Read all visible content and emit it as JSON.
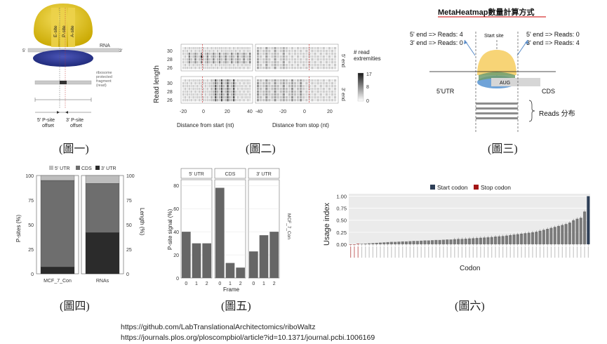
{
  "captions": [
    "(圖一)",
    "(圖二)",
    "(圖三)",
    "(圖四)",
    "(圖五)",
    "(圖六)"
  ],
  "fig1": {
    "sites": [
      "E-site",
      "P-site",
      "A-site"
    ],
    "rna_label": "RNA",
    "five_prime": "5'",
    "three_prime": "3'",
    "fragment_label": "ribosome\nprotected\nfragment\n(read)",
    "offset5": "5' P-site\noffset",
    "offset3": "3' P-site\noffset"
  },
  "fig2": {
    "ylabel": "Read length",
    "yticks": [
      "30",
      "28",
      "26"
    ],
    "xlabel_left": "Distance from start (nt)",
    "xlabel_right": "Distance from stop (nt)",
    "xticks_left": [
      "-20",
      "0",
      "20",
      "40"
    ],
    "xticks_right": [
      "-40",
      "-20",
      "0",
      "20"
    ],
    "strip_top": "5' end",
    "strip_bottom": "3' end",
    "legend_title": "# read\nextremities",
    "legend_ticks": [
      "17",
      "8",
      "0"
    ]
  },
  "fig3": {
    "title": "MetaHeatmap數量計算方式",
    "left_top": "5' end => Reads: 4",
    "left_bottom": "3' end => Reads: 0",
    "start_site": "Start site",
    "right_top": "5' end => Reads: 0",
    "right_bottom": "3' end => Reads: 4",
    "aug": "AUG",
    "utr": "5'UTR",
    "cds": "CDS",
    "reads": "Reads 分布"
  },
  "fig4": {
    "legend": [
      "5' UTR",
      "CDS",
      "3' UTR"
    ],
    "colors": {
      "utr5": "#bdbdbd",
      "cds": "#6e6e6e",
      "utr3": "#2b2b2b"
    },
    "ylabel_left": "P-sites (%)",
    "ylabel_right": "Length (%)",
    "yticks": [
      "100",
      "75",
      "50",
      "25",
      "0"
    ],
    "categories": [
      "MCF_7_Con",
      "RNAs"
    ]
  },
  "fig5": {
    "panels": [
      "5' UTR",
      "CDS",
      "3' UTR"
    ],
    "ylabel": "P-site signal (%)",
    "yticks": [
      "80",
      "60",
      "40",
      "20",
      "0"
    ],
    "xticks": [
      "0",
      "1",
      "2"
    ],
    "xlabel": "Frame",
    "strip_right": "MCF_7_Con"
  },
  "fig6": {
    "legend": [
      "Start codon",
      "Stop codon"
    ],
    "ylabel": "Usage index",
    "xlabel": "Codon",
    "yticks": [
      "1.00",
      "0.75",
      "0.50",
      "0.25",
      "0.00"
    ],
    "start_color": "#2e3f57",
    "stop_color": "#a31515"
  },
  "chart_data": [
    {
      "type": "bar",
      "stacked": true,
      "title": "(圖四)",
      "categories": [
        "MCF_7_Con",
        "RNAs"
      ],
      "series": [
        {
          "name": "3' UTR",
          "values": [
            7,
            42
          ]
        },
        {
          "name": "CDS",
          "values": [
            88,
            50
          ]
        },
        {
          "name": "5' UTR",
          "values": [
            5,
            8
          ]
        }
      ],
      "ylabel": "P-sites (%)",
      "ylabel_right": "Length (%)",
      "ylim": [
        0,
        100
      ]
    },
    {
      "type": "bar",
      "title": "(圖五)",
      "categories": [
        "0",
        "1",
        "2"
      ],
      "series": [
        {
          "name": "5' UTR",
          "values": [
            40,
            30,
            30
          ]
        },
        {
          "name": "CDS",
          "values": [
            78,
            13,
            9
          ]
        },
        {
          "name": "3' UTR",
          "values": [
            23,
            37,
            40
          ]
        }
      ],
      "xlabel": "Frame",
      "ylabel": "P-site signal (%)",
      "ylim": [
        0,
        85
      ],
      "grid": true
    },
    {
      "type": "bar",
      "title": "(圖六)",
      "series": [
        {
          "name": "Stop codon",
          "values": [
            0.0,
            0.0,
            0.01
          ]
        },
        {
          "name": "",
          "values": [
            0.01,
            0.015,
            0.02,
            0.025,
            0.03,
            0.035,
            0.04,
            0.045,
            0.05,
            0.05,
            0.055,
            0.06,
            0.06,
            0.065,
            0.07,
            0.07,
            0.075,
            0.08,
            0.08,
            0.085,
            0.09,
            0.09,
            0.095,
            0.1,
            0.1,
            0.105,
            0.11,
            0.11,
            0.115,
            0.12,
            0.125,
            0.13,
            0.135,
            0.14,
            0.145,
            0.15,
            0.16,
            0.165,
            0.17,
            0.18,
            0.19,
            0.2,
            0.21,
            0.22,
            0.23,
            0.24,
            0.25,
            0.26,
            0.28,
            0.3,
            0.32,
            0.34,
            0.36,
            0.38,
            0.4,
            0.42,
            0.45,
            0.5,
            0.53,
            0.55,
            0.68
          ]
        },
        {
          "name": "Start codon",
          "values": [
            1.0
          ]
        }
      ],
      "xlabel": "Codon",
      "ylabel": "Usage index",
      "ylim": [
        0,
        1.05
      ],
      "legend": "top",
      "grid": true
    }
  ],
  "urls": [
    "https://github.com/LabTranslationalArchitectomics/riboWaltz",
    "https://journals.plos.org/ploscompbiol/article?id=10.1371/journal.pcbi.1006169"
  ]
}
